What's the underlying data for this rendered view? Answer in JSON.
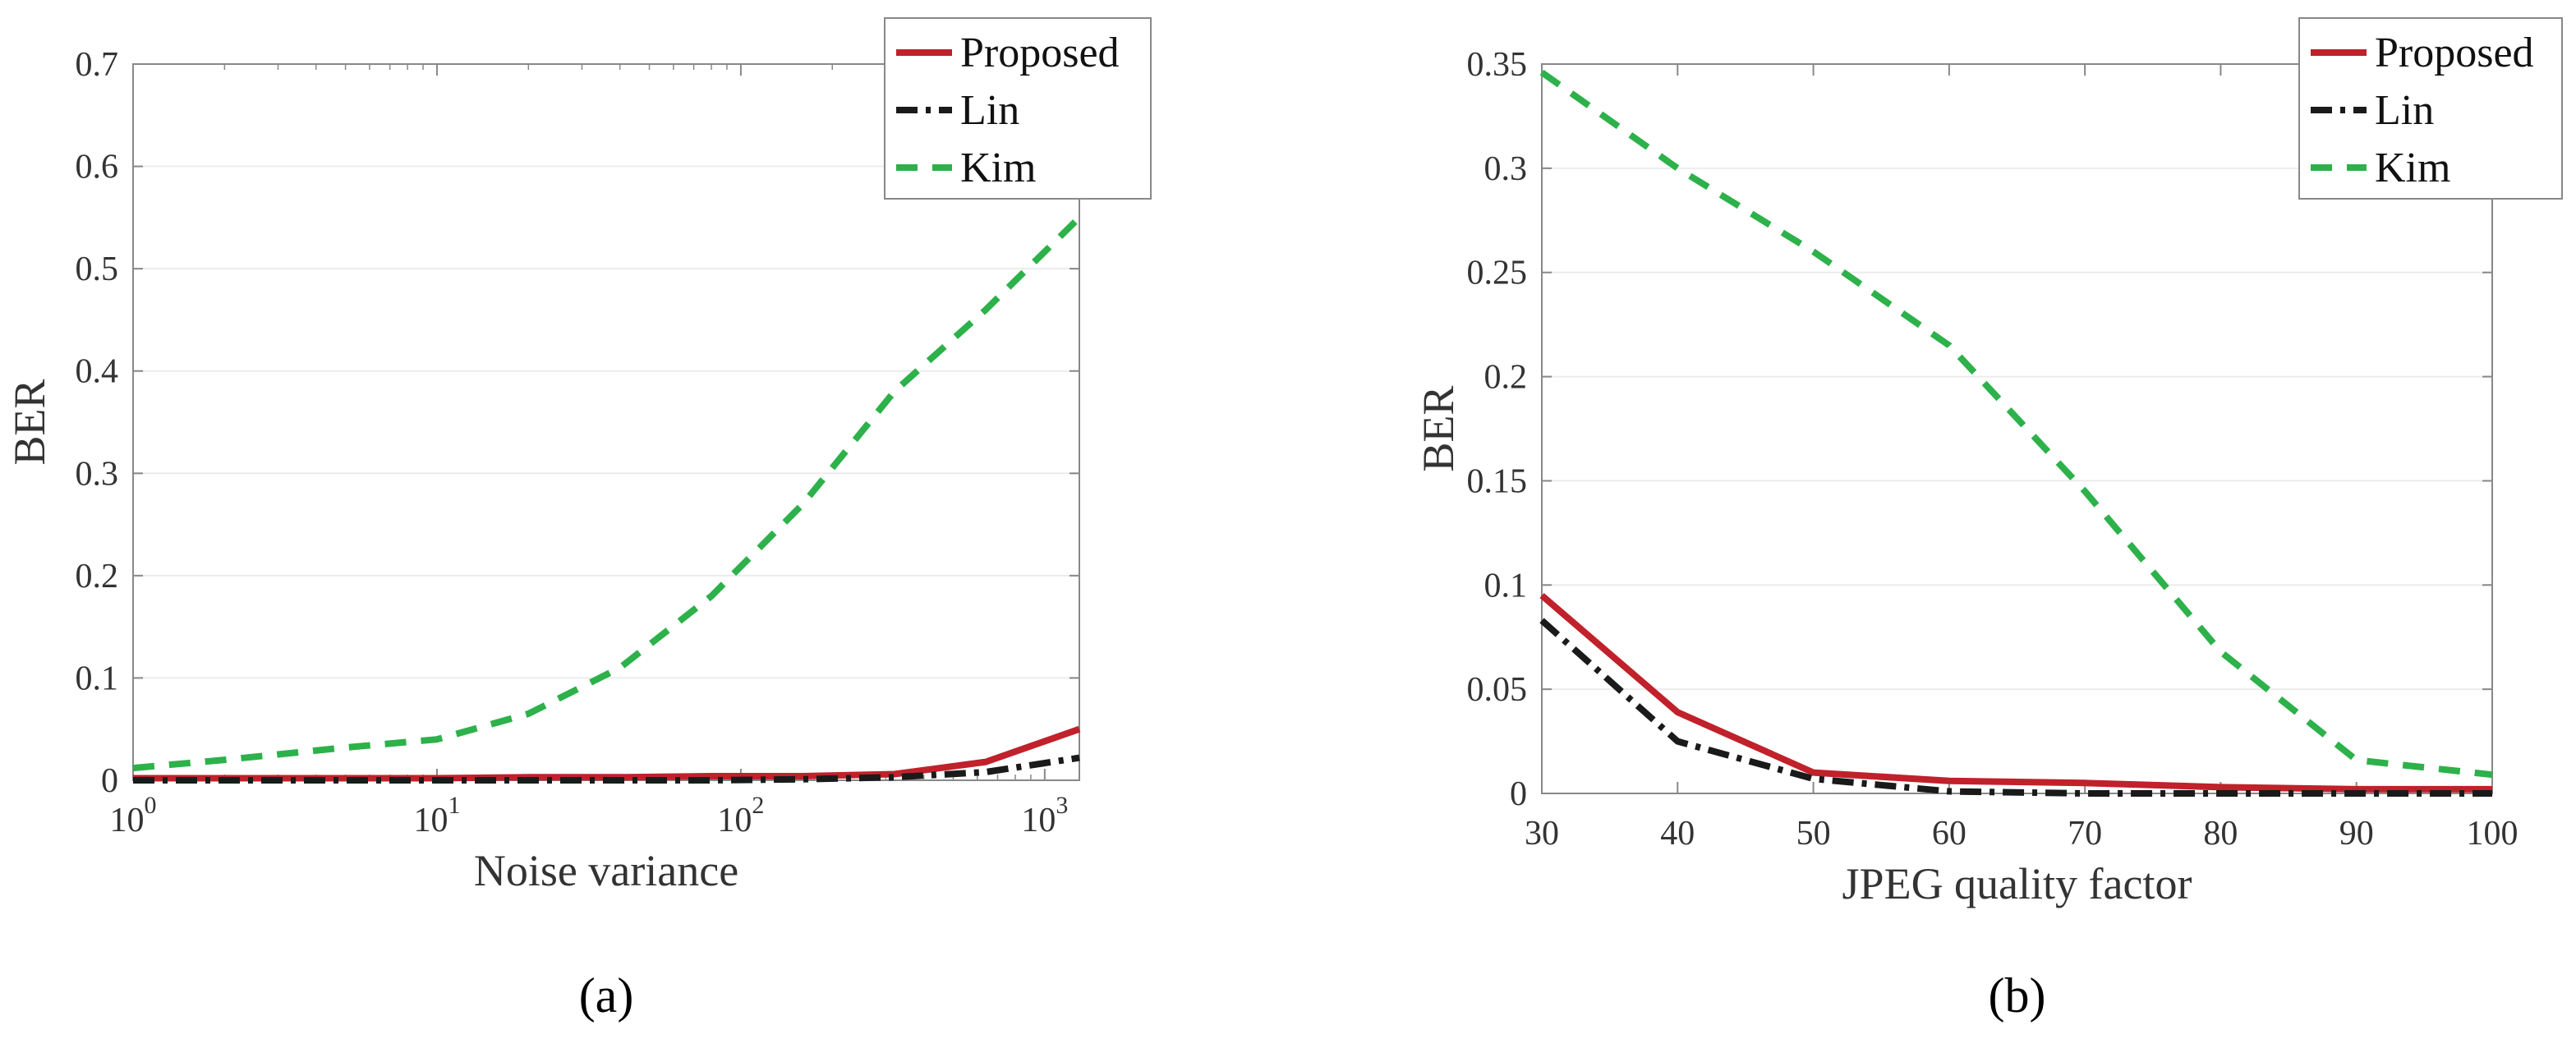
{
  "colors": {
    "proposed": "#c0212b",
    "lin": "#1a1a1a",
    "kim": "#2db14a",
    "axis": "#888888",
    "grid": "#ececec",
    "text": "#333333"
  },
  "chart_data": [
    {
      "type": "line",
      "panel": "a",
      "panel_label": "(a)",
      "title": "",
      "xlabel": "Noise variance",
      "ylabel": "BER",
      "xscale": "log",
      "xlim": [
        1,
        1300
      ],
      "ylim": [
        0,
        0.7
      ],
      "grid": "y-major",
      "legend_position": "top-right",
      "x_ticks": [
        {
          "value": 1,
          "base": "10",
          "exp": "0"
        },
        {
          "value": 10,
          "base": "10",
          "exp": "1"
        },
        {
          "value": 100,
          "base": "10",
          "exp": "2"
        },
        {
          "value": 1000,
          "base": "10",
          "exp": "3"
        }
      ],
      "y_ticks": [
        {
          "value": 0,
          "label": "0"
        },
        {
          "value": 0.1,
          "label": "0.1"
        },
        {
          "value": 0.2,
          "label": "0.2"
        },
        {
          "value": 0.3,
          "label": "0.3"
        },
        {
          "value": 0.4,
          "label": "0.4"
        },
        {
          "value": 0.5,
          "label": "0.5"
        },
        {
          "value": 0.6,
          "label": "0.6"
        },
        {
          "value": 0.7,
          "label": "0.7"
        }
      ],
      "series": [
        {
          "name": "Proposed",
          "key": "proposed",
          "style": "solid",
          "x": [
            1,
            2,
            5,
            10,
            20,
            40,
            80,
            160,
            320,
            640,
            1300
          ],
          "y": [
            0.002,
            0.002,
            0.002,
            0.002,
            0.003,
            0.003,
            0.004,
            0.004,
            0.006,
            0.018,
            0.05
          ]
        },
        {
          "name": "Lin",
          "key": "lin",
          "style": "dashdot",
          "x": [
            1,
            2,
            5,
            10,
            20,
            40,
            80,
            160,
            320,
            640,
            1300
          ],
          "y": [
            0,
            0,
            0,
            0,
            0,
            0,
            0,
            0.001,
            0.003,
            0.008,
            0.022
          ]
        },
        {
          "name": "Kim",
          "key": "kim",
          "style": "dashed",
          "x": [
            1,
            2,
            5,
            10,
            20,
            40,
            80,
            160,
            320,
            640,
            1300
          ],
          "y": [
            0.012,
            0.02,
            0.032,
            0.04,
            0.065,
            0.11,
            0.18,
            0.27,
            0.38,
            0.46,
            0.55
          ]
        }
      ]
    },
    {
      "type": "line",
      "panel": "b",
      "panel_label": "(b)",
      "title": "",
      "xlabel": "JPEG quality factor",
      "ylabel": "BER",
      "xscale": "linear",
      "xlim": [
        30,
        100
      ],
      "ylim": [
        0,
        0.35
      ],
      "grid": "y-major",
      "legend_position": "top-right",
      "x_ticks": [
        {
          "value": 30,
          "label": "30"
        },
        {
          "value": 40,
          "label": "40"
        },
        {
          "value": 50,
          "label": "50"
        },
        {
          "value": 60,
          "label": "60"
        },
        {
          "value": 70,
          "label": "70"
        },
        {
          "value": 80,
          "label": "80"
        },
        {
          "value": 90,
          "label": "90"
        },
        {
          "value": 100,
          "label": "100"
        }
      ],
      "y_ticks": [
        {
          "value": 0,
          "label": "0"
        },
        {
          "value": 0.05,
          "label": "0.05"
        },
        {
          "value": 0.1,
          "label": "0.1"
        },
        {
          "value": 0.15,
          "label": "0.15"
        },
        {
          "value": 0.2,
          "label": "0.2"
        },
        {
          "value": 0.25,
          "label": "0.25"
        },
        {
          "value": 0.3,
          "label": "0.3"
        },
        {
          "value": 0.35,
          "label": "0.35"
        }
      ],
      "series": [
        {
          "name": "Proposed",
          "key": "proposed",
          "style": "solid",
          "x": [
            30,
            40,
            50,
            60,
            70,
            80,
            90,
            100
          ],
          "y": [
            0.095,
            0.039,
            0.01,
            0.006,
            0.005,
            0.003,
            0.002,
            0.002
          ]
        },
        {
          "name": "Lin",
          "key": "lin",
          "style": "dashdot",
          "x": [
            30,
            40,
            50,
            60,
            70,
            80,
            90,
            100
          ],
          "y": [
            0.083,
            0.025,
            0.007,
            0.001,
            0,
            0,
            0,
            0
          ]
        },
        {
          "name": "Kim",
          "key": "kim",
          "style": "dashed",
          "x": [
            30,
            40,
            50,
            60,
            70,
            80,
            90,
            100
          ],
          "y": [
            0.346,
            0.3,
            0.26,
            0.215,
            0.145,
            0.068,
            0.016,
            0.009
          ]
        }
      ]
    }
  ]
}
